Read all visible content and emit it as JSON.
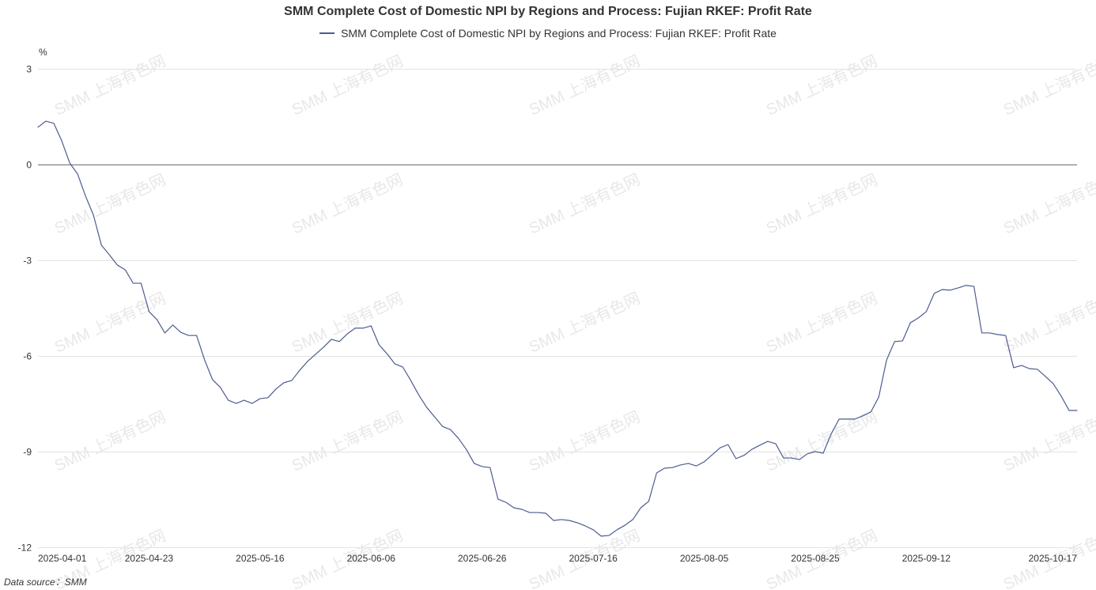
{
  "chart_data": {
    "type": "line",
    "title": "SMM Complete Cost of Domestic NPI by Regions and Process: Fujian RKEF: Profit Rate",
    "ylabel": "%",
    "ylim": [
      -12,
      3
    ],
    "y_ticks": [
      3,
      0,
      -3,
      -6,
      -9,
      -12
    ],
    "grid": true,
    "legend": "top-center",
    "x_ticks": [
      {
        "label": "2025-04-01",
        "point_index": 0
      },
      {
        "label": "2025-04-23",
        "point_index": 14
      },
      {
        "label": "2025-05-16",
        "point_index": 28
      },
      {
        "label": "2025-06-06",
        "point_index": 42
      },
      {
        "label": "2025-06-26",
        "point_index": 56
      },
      {
        "label": "2025-07-16",
        "point_index": 70
      },
      {
        "label": "2025-08-05",
        "point_index": 84
      },
      {
        "label": "2025-08-25",
        "point_index": 98
      },
      {
        "label": "2025-09-12",
        "point_index": 112
      },
      {
        "label": "2025-10-17",
        "point_index": 131
      }
    ],
    "series": [
      {
        "name": "SMM Complete Cost of Domestic NPI by Regions and Process: Fujian RKEF: Profit Rate",
        "color": "#4d5b91",
        "values": [
          1.17,
          1.36,
          1.29,
          0.74,
          0.05,
          -0.3,
          -0.99,
          -1.59,
          -2.53,
          -2.83,
          -3.15,
          -3.3,
          -3.72,
          -3.72,
          -4.61,
          -4.86,
          -5.28,
          -5.03,
          -5.26,
          -5.36,
          -5.36,
          -6.12,
          -6.74,
          -6.99,
          -7.39,
          -7.49,
          -7.39,
          -7.49,
          -7.34,
          -7.31,
          -7.04,
          -6.84,
          -6.77,
          -6.45,
          -6.17,
          -5.95,
          -5.73,
          -5.48,
          -5.55,
          -5.31,
          -5.13,
          -5.13,
          -5.06,
          -5.65,
          -5.93,
          -6.25,
          -6.35,
          -6.77,
          -7.22,
          -7.61,
          -7.91,
          -8.21,
          -8.31,
          -8.58,
          -8.93,
          -9.37,
          -9.47,
          -9.5,
          -10.49,
          -10.59,
          -10.76,
          -10.81,
          -10.91,
          -10.91,
          -10.93,
          -11.16,
          -11.13,
          -11.16,
          -11.23,
          -11.33,
          -11.45,
          -11.65,
          -11.63,
          -11.45,
          -11.31,
          -11.13,
          -10.76,
          -10.56,
          -9.67,
          -9.52,
          -9.5,
          -9.42,
          -9.37,
          -9.45,
          -9.32,
          -9.1,
          -8.88,
          -8.78,
          -9.22,
          -9.12,
          -8.93,
          -8.8,
          -8.68,
          -8.75,
          -9.2,
          -9.2,
          -9.25,
          -9.07,
          -9.0,
          -9.05,
          -8.45,
          -7.98,
          -7.98,
          -7.98,
          -7.88,
          -7.76,
          -7.29,
          -6.12,
          -5.55,
          -5.53,
          -4.96,
          -4.81,
          -4.61,
          -4.04,
          -3.92,
          -3.94,
          -3.87,
          -3.79,
          -3.82,
          -5.28,
          -5.28,
          -5.33,
          -5.36,
          -6.37,
          -6.3,
          -6.4,
          -6.42,
          -6.64,
          -6.87,
          -7.26,
          -7.71,
          -7.71
        ]
      }
    ],
    "source": "Data source：SMM"
  },
  "watermark": {
    "text": "SMM 上海有色网"
  }
}
